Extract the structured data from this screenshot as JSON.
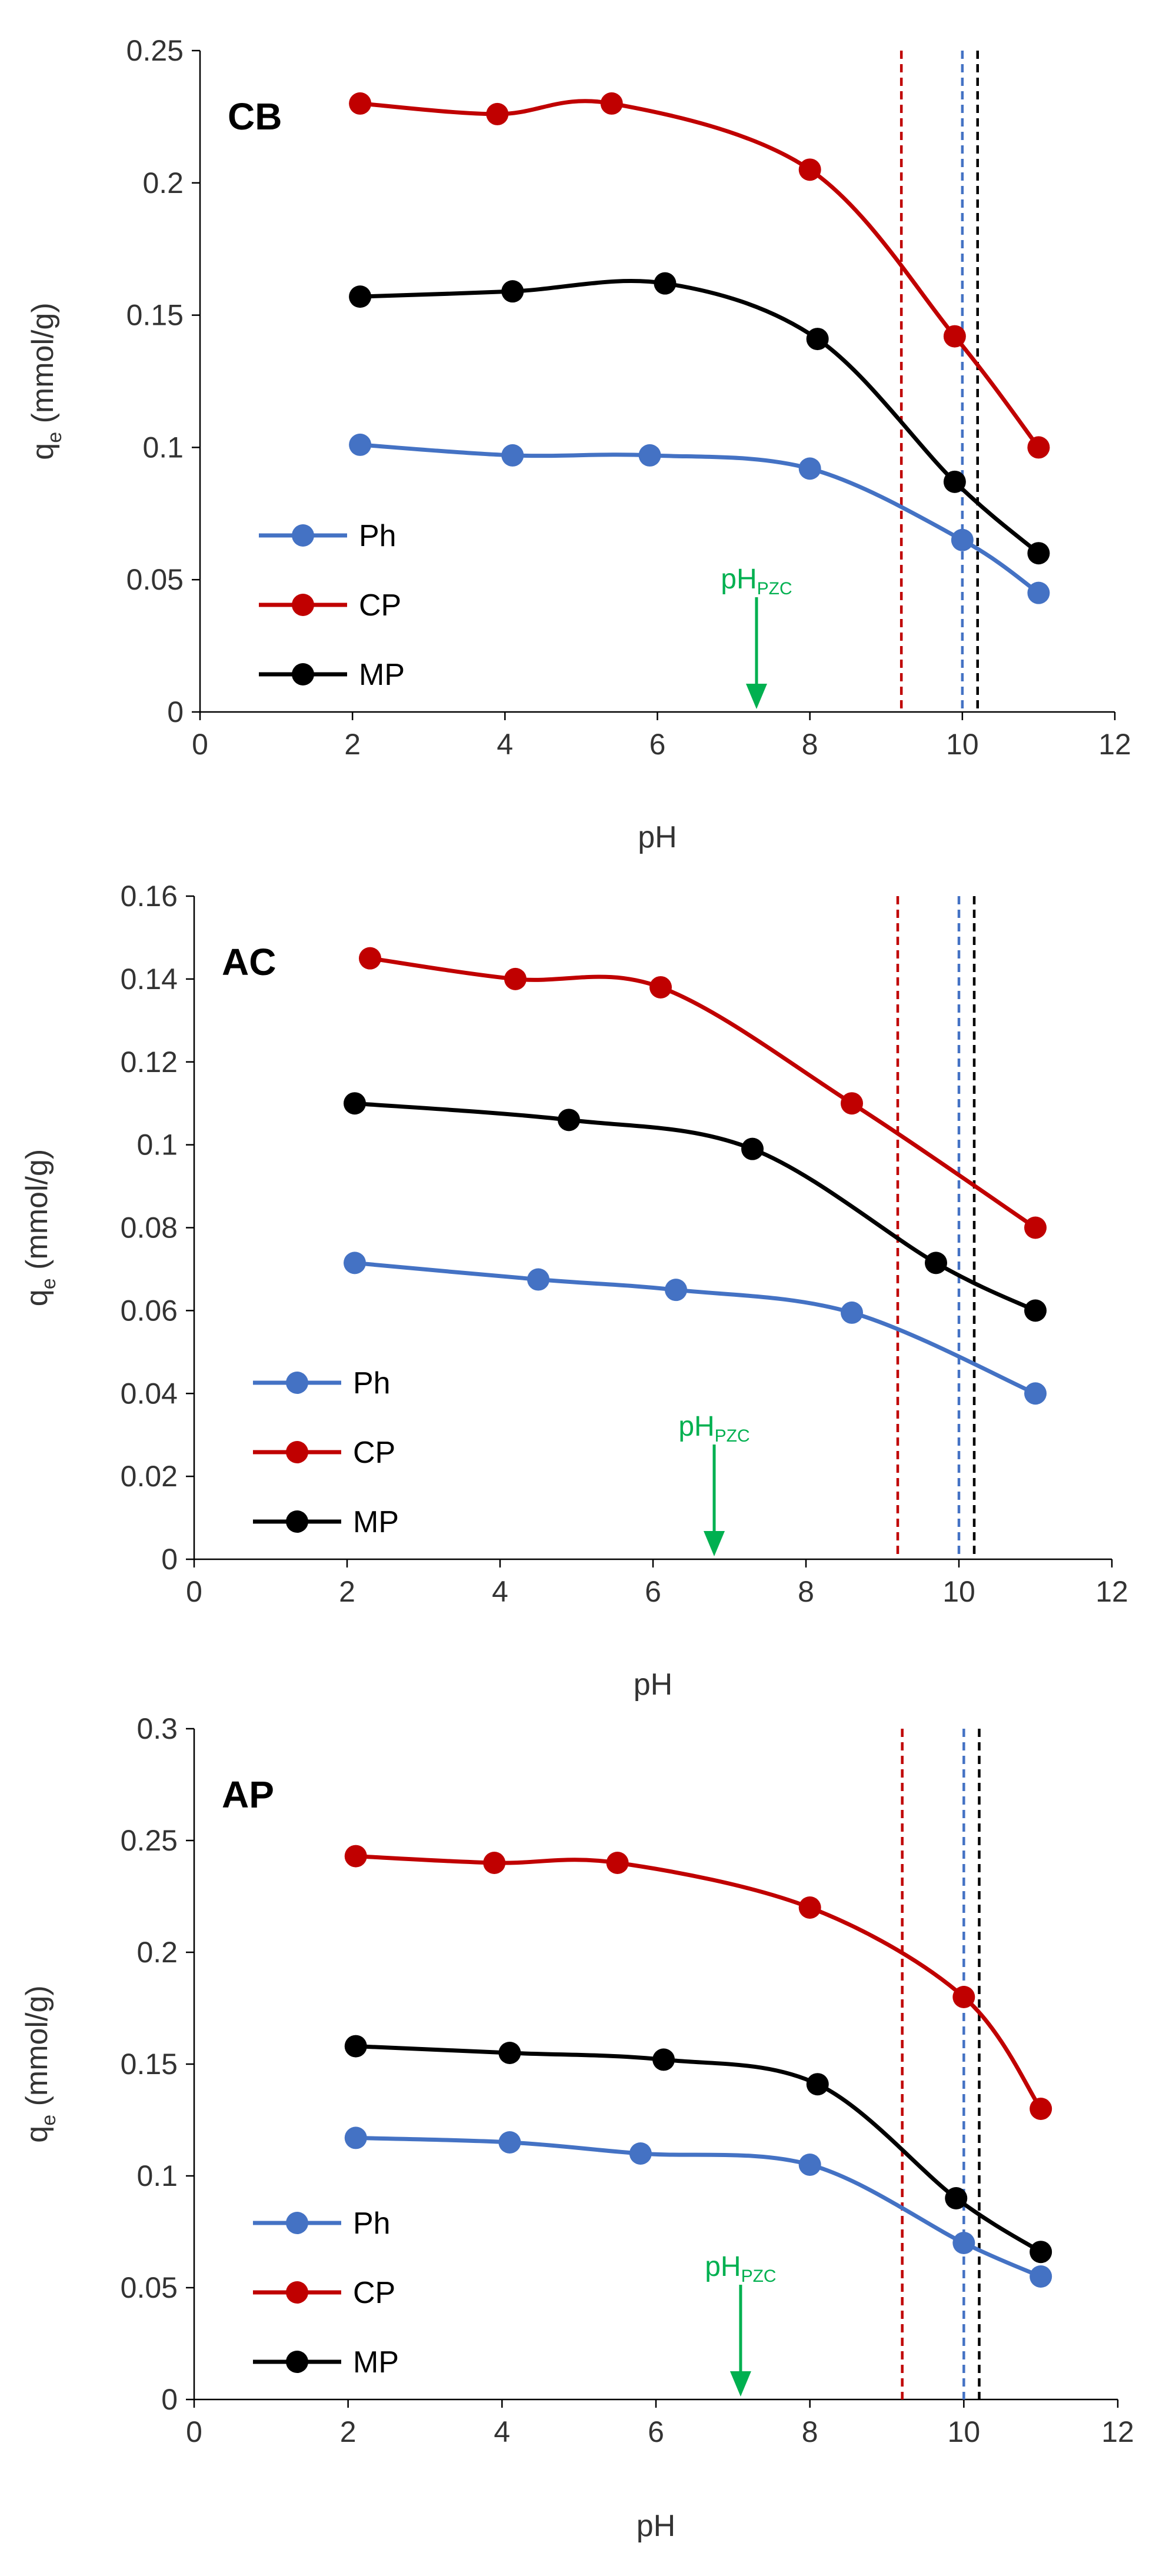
{
  "chart_data": [
    {
      "type": "line",
      "panel_label": "CB",
      "xlabel": "pH",
      "ylabel_main": "q",
      "ylabel_sub": "e",
      "ylabel_tail": " (mmol/g)",
      "xlim": [
        0,
        12
      ],
      "ylim": [
        0,
        0.25
      ],
      "x_ticks": [
        0,
        2,
        4,
        6,
        8,
        10,
        12
      ],
      "y_ticks": [
        0,
        0.05,
        0.1,
        0.15,
        0.2,
        0.25
      ],
      "x_tick_labels": [
        "0",
        "2",
        "4",
        "6",
        "8",
        "10",
        "12"
      ],
      "y_tick_labels": [
        "0",
        "0.05",
        "0.1",
        "0.15",
        "0.2",
        "0.25"
      ],
      "grid": false,
      "legend_position": "bottom-left",
      "series": [
        {
          "name": "Ph",
          "color": "#4472C4",
          "x": [
            2.1,
            4.1,
            5.9,
            8.0,
            10.0,
            11.0
          ],
          "y": [
            0.101,
            0.097,
            0.097,
            0.092,
            0.065,
            0.045
          ]
        },
        {
          "name": "CP",
          "color": "#C00000",
          "x": [
            2.1,
            3.9,
            5.4,
            8.0,
            9.9,
            11.0
          ],
          "y": [
            0.23,
            0.226,
            0.23,
            0.205,
            0.142,
            0.1
          ]
        },
        {
          "name": "MP",
          "color": "#000000",
          "x": [
            2.1,
            4.1,
            6.1,
            8.1,
            9.9,
            11.0
          ],
          "y": [
            0.157,
            0.159,
            0.162,
            0.141,
            0.087,
            0.06
          ]
        }
      ],
      "vlines": [
        {
          "x": 9.2,
          "color": "#C00000"
        },
        {
          "x": 10.0,
          "color": "#4472C4"
        },
        {
          "x": 10.2,
          "color": "#000000"
        }
      ],
      "annotation": {
        "main": "pH",
        "sub": "PZC",
        "x": 7.3,
        "color": "#00B050"
      }
    },
    {
      "type": "line",
      "panel_label": "AC",
      "xlabel": "pH",
      "ylabel_main": "q",
      "ylabel_sub": "e",
      "ylabel_tail": " (mmol/g)",
      "xlim": [
        0,
        12
      ],
      "ylim": [
        0,
        0.16
      ],
      "x_ticks": [
        0,
        2,
        4,
        6,
        8,
        10,
        12
      ],
      "y_ticks": [
        0,
        0.02,
        0.04,
        0.06,
        0.08,
        0.1,
        0.12,
        0.14,
        0.16
      ],
      "x_tick_labels": [
        "0",
        "2",
        "4",
        "6",
        "8",
        "10",
        "12"
      ],
      "y_tick_labels": [
        "0",
        "0.02",
        "0.04",
        "0.06",
        "0.08",
        "0.1",
        "0.12",
        "0.14",
        "0.16"
      ],
      "grid": false,
      "legend_position": "bottom-left",
      "series": [
        {
          "name": "Ph",
          "color": "#4472C4",
          "x": [
            2.1,
            4.5,
            6.3,
            8.6,
            11.0
          ],
          "y": [
            0.0715,
            0.0675,
            0.065,
            0.0595,
            0.04
          ]
        },
        {
          "name": "CP",
          "color": "#C00000",
          "x": [
            2.3,
            4.2,
            6.1,
            8.6,
            11.0
          ],
          "y": [
            0.145,
            0.14,
            0.138,
            0.11,
            0.08
          ]
        },
        {
          "name": "MP",
          "color": "#000000",
          "x": [
            2.1,
            4.9,
            7.3,
            9.7,
            11.0
          ],
          "y": [
            0.11,
            0.106,
            0.099,
            0.0715,
            0.06
          ]
        }
      ],
      "vlines": [
        {
          "x": 9.2,
          "color": "#C00000"
        },
        {
          "x": 10.0,
          "color": "#4472C4"
        },
        {
          "x": 10.2,
          "color": "#000000"
        }
      ],
      "annotation": {
        "main": "pH",
        "sub": "PZC",
        "x": 6.8,
        "color": "#00B050"
      }
    },
    {
      "type": "line",
      "panel_label": "AP",
      "xlabel": "pH",
      "ylabel_main": "q",
      "ylabel_sub": "e",
      "ylabel_tail": " (mmol/g)",
      "xlim": [
        0,
        12
      ],
      "ylim": [
        0,
        0.3
      ],
      "x_ticks": [
        0,
        2,
        4,
        6,
        8,
        10,
        12
      ],
      "y_ticks": [
        0,
        0.05,
        0.1,
        0.15,
        0.2,
        0.25,
        0.3
      ],
      "x_tick_labels": [
        "0",
        "2",
        "4",
        "6",
        "8",
        "10",
        "12"
      ],
      "y_tick_labels": [
        "0",
        "0.05",
        "0.1",
        "0.15",
        "0.2",
        "0.25",
        "0.3"
      ],
      "grid": false,
      "legend_position": "bottom-left",
      "series": [
        {
          "name": "Ph",
          "color": "#4472C4",
          "x": [
            2.1,
            4.1,
            5.8,
            8.0,
            10.0,
            11.0
          ],
          "y": [
            0.117,
            0.115,
            0.11,
            0.105,
            0.07,
            0.055
          ]
        },
        {
          "name": "CP",
          "color": "#C00000",
          "x": [
            2.1,
            3.9,
            5.5,
            8.0,
            10.0,
            11.0
          ],
          "y": [
            0.243,
            0.24,
            0.24,
            0.22,
            0.18,
            0.13
          ]
        },
        {
          "name": "MP",
          "color": "#000000",
          "x": [
            2.1,
            4.1,
            6.1,
            8.1,
            9.9,
            11.0
          ],
          "y": [
            0.158,
            0.155,
            0.152,
            0.141,
            0.09,
            0.066
          ]
        }
      ],
      "vlines": [
        {
          "x": 9.2,
          "color": "#C00000"
        },
        {
          "x": 10.0,
          "color": "#4472C4"
        },
        {
          "x": 10.2,
          "color": "#000000"
        }
      ],
      "annotation": {
        "main": "pH",
        "sub": "PZC",
        "x": 7.1,
        "color": "#00B050"
      }
    }
  ]
}
